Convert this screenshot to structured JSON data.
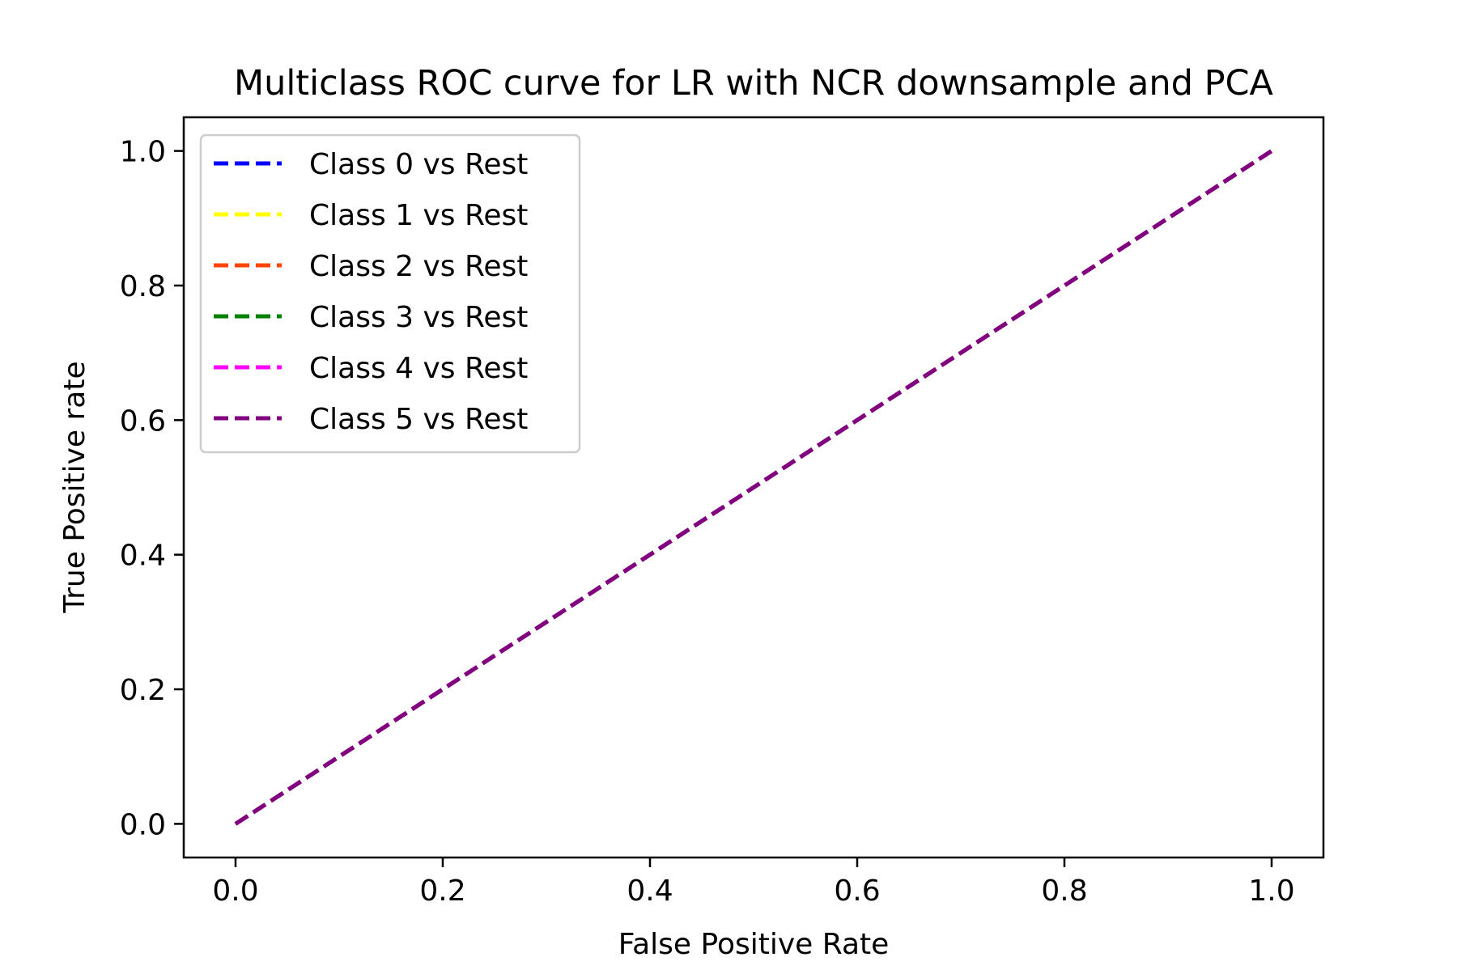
{
  "chart_data": {
    "type": "line",
    "title": "Multiclass ROC curve for LR with NCR downsample and PCA",
    "xlabel": "False Positive Rate",
    "ylabel": "True Positive rate",
    "xlim": [
      -0.05,
      1.05
    ],
    "ylim": [
      -0.05,
      1.05
    ],
    "xticks": [
      0.0,
      0.2,
      0.4,
      0.6,
      0.8,
      1.0
    ],
    "yticks": [
      0.0,
      0.2,
      0.4,
      0.6,
      0.8,
      1.0
    ],
    "xtick_labels": [
      "0.0",
      "0.2",
      "0.4",
      "0.6",
      "0.8",
      "1.0"
    ],
    "ytick_labels": [
      "0.0",
      "0.2",
      "0.4",
      "0.6",
      "0.8",
      "1.0"
    ],
    "grid": false,
    "legend_position": "upper-left",
    "line_style": "dashed",
    "series": [
      {
        "name": "Class 0 vs Rest",
        "color": "#0000ff",
        "x": [
          0.0,
          1.0
        ],
        "y": [
          0.0,
          1.0
        ]
      },
      {
        "name": "Class 1 vs Rest",
        "color": "#ffff00",
        "x": [
          0.0,
          1.0
        ],
        "y": [
          0.0,
          1.0
        ]
      },
      {
        "name": "Class 2 vs Rest",
        "color": "#ff4500",
        "x": [
          0.0,
          1.0
        ],
        "y": [
          0.0,
          1.0
        ]
      },
      {
        "name": "Class 3 vs Rest",
        "color": "#008000",
        "x": [
          0.0,
          1.0
        ],
        "y": [
          0.0,
          1.0
        ]
      },
      {
        "name": "Class 4 vs Rest",
        "color": "#ff00ff",
        "x": [
          0.0,
          1.0
        ],
        "y": [
          0.0,
          1.0
        ]
      },
      {
        "name": "Class 5 vs Rest",
        "color": "#800080",
        "x": [
          0.0,
          1.0
        ],
        "y": [
          0.0,
          1.0
        ]
      }
    ]
  }
}
